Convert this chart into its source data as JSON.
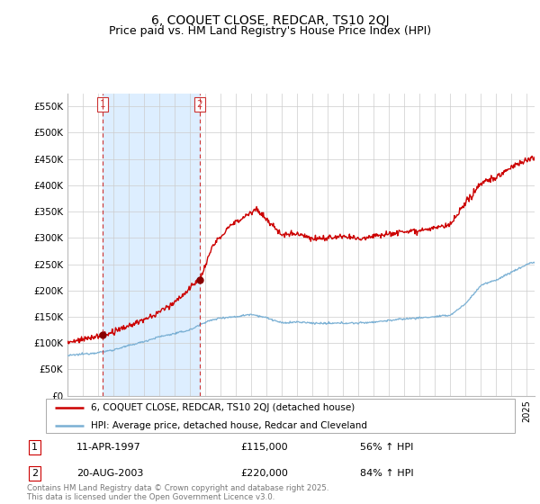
{
  "title": "6, COQUET CLOSE, REDCAR, TS10 2QJ",
  "subtitle": "Price paid vs. HM Land Registry's House Price Index (HPI)",
  "ylim": [
    0,
    575000
  ],
  "yticks": [
    0,
    50000,
    100000,
    150000,
    200000,
    250000,
    300000,
    350000,
    400000,
    450000,
    500000,
    550000
  ],
  "ytick_labels": [
    "£0",
    "£50K",
    "£100K",
    "£150K",
    "£200K",
    "£250K",
    "£300K",
    "£350K",
    "£400K",
    "£450K",
    "£500K",
    "£550K"
  ],
  "xmin": 1995.0,
  "xmax": 2025.5,
  "sale1_date_num": 1997.28,
  "sale1_price": 115000,
  "sale2_date_num": 2003.64,
  "sale2_price": 220000,
  "sale1_date_str": "11-APR-1997",
  "sale1_price_str": "£115,000",
  "sale1_pct": "56% ↑ HPI",
  "sale2_date_str": "20-AUG-2003",
  "sale2_price_str": "£220,000",
  "sale2_pct": "84% ↑ HPI",
  "line_color_property": "#cc0000",
  "line_color_hpi": "#7ab0d4",
  "shade_color": "#ddeeff",
  "vline_color": "#cc3333",
  "marker_color": "#880000",
  "legend_label_property": "6, COQUET CLOSE, REDCAR, TS10 2QJ (detached house)",
  "legend_label_hpi": "HPI: Average price, detached house, Redcar and Cleveland",
  "footer": "Contains HM Land Registry data © Crown copyright and database right 2025.\nThis data is licensed under the Open Government Licence v3.0.",
  "background_color": "#ffffff",
  "grid_color": "#cccccc",
  "title_fontsize": 10,
  "subtitle_fontsize": 9
}
